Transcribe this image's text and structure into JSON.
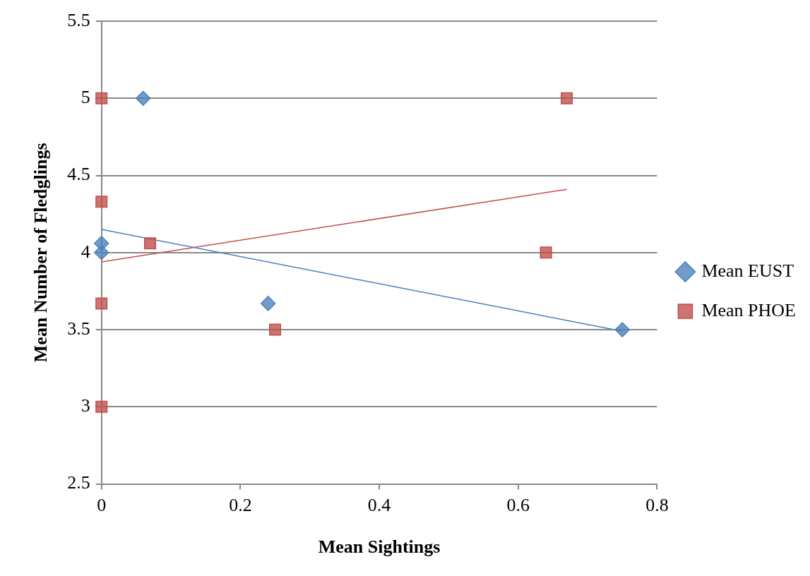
{
  "chart_data": {
    "type": "scatter",
    "xlabel": "Mean Sightings",
    "ylabel": "Mean Number of Fledglings",
    "xlim": [
      0,
      0.8
    ],
    "xticks": [
      0,
      0.2,
      0.4,
      0.6,
      0.8
    ],
    "ylim": [
      2.5,
      5.5
    ],
    "yticks": [
      2.5,
      3,
      3.5,
      4,
      4.5,
      5,
      5.5
    ],
    "grid": "y",
    "legend": "right",
    "series": [
      {
        "name": "Mean EUST",
        "marker": "diamond",
        "color": "#4f81bd",
        "x": [
          0,
          0,
          0.06,
          0.24,
          0.75
        ],
        "values": [
          4.0,
          4.06,
          5.0,
          3.67,
          3.5
        ]
      },
      {
        "name": "Mean PHOE",
        "marker": "square",
        "color": "#c0504d",
        "x": [
          0,
          0,
          0,
          0,
          0.07,
          0.25,
          0.64,
          0.67
        ],
        "values": [
          5.0,
          4.33,
          3.67,
          3.0,
          4.06,
          3.5,
          4.0,
          5.0
        ]
      },
      {
        "type": "line",
        "marker": "none",
        "color": "#4a7ebb",
        "x": [
          0,
          0.75
        ],
        "values": [
          4.15,
          3.49
        ]
      },
      {
        "type": "line",
        "marker": "none",
        "color": "#c0504d",
        "x": [
          0,
          0.67
        ],
        "values": [
          3.94,
          4.41
        ]
      }
    ]
  }
}
